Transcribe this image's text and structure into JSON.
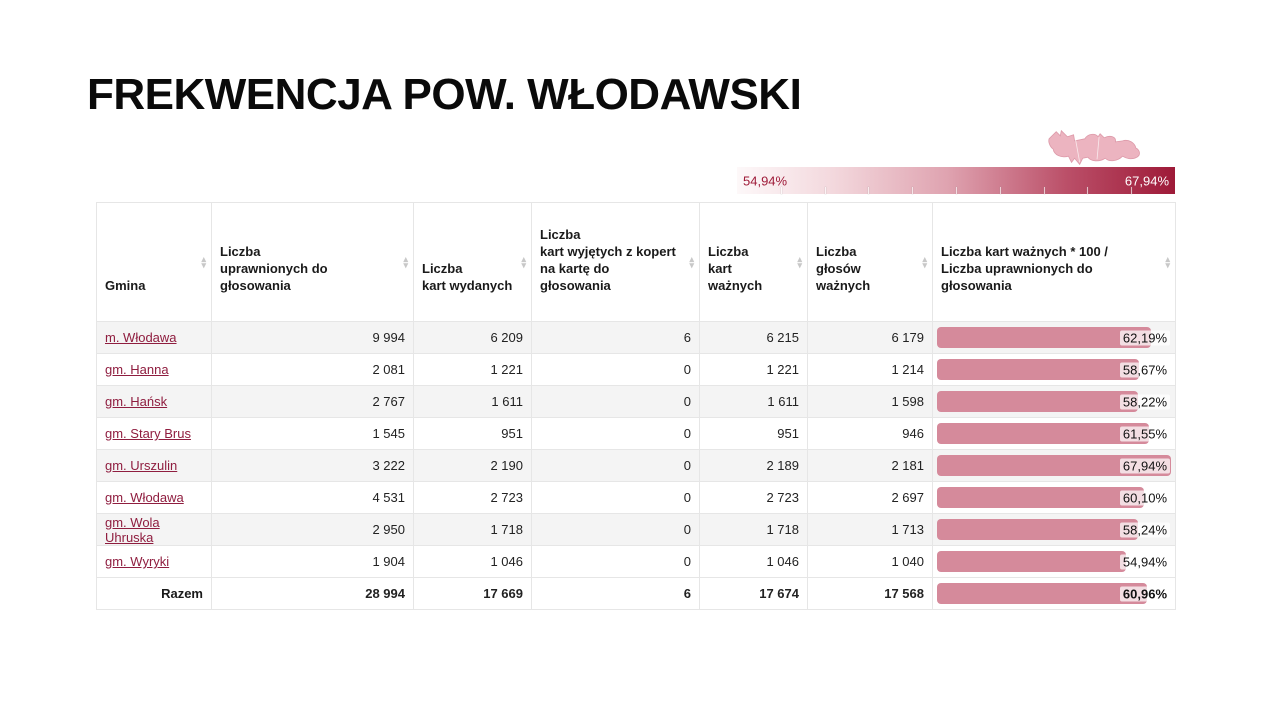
{
  "page_title": "FREKWENCJA POW. WŁODAWSKI",
  "icons": {
    "sort_asc_glyph": "▴",
    "sort_desc_glyph": "▾"
  },
  "legend": {
    "min_label": "54,94%",
    "max_label": "67,94%",
    "min_value": 54.94,
    "max_value": 67.94,
    "gradient_start_color": "#fdf8f9",
    "gradient_end_color": "#9e1a38",
    "map_icon": "county-silhouette-map",
    "map_fill_color": "#ecb4c0"
  },
  "table": {
    "headers": [
      {
        "label": "Gmina",
        "sortable": true
      },
      {
        "label": "Liczba\nuprawnionych do głosowania",
        "sortable": true
      },
      {
        "label": "Liczba\nkart wydanych",
        "sortable": true
      },
      {
        "label": "Liczba\nkart wyjętych z kopert\nna kartę do głosowania",
        "sortable": true
      },
      {
        "label": "Liczba\nkart ważnych",
        "sortable": true
      },
      {
        "label": "Liczba\ngłosów ważnych",
        "sortable": true
      },
      {
        "label": "Liczba kart ważnych * 100 /\nLiczba uprawnionych do głosowania",
        "sortable": true
      }
    ],
    "rows": [
      {
        "gmina": "m. Włodawa",
        "values": [
          "9 994",
          "6 209",
          "6",
          "6 215",
          "6 179"
        ],
        "pct_label": "62,19%",
        "pct_value": 62.19
      },
      {
        "gmina": "gm. Hanna",
        "values": [
          "2 081",
          "1 221",
          "0",
          "1 221",
          "1 214"
        ],
        "pct_label": "58,67%",
        "pct_value": 58.67
      },
      {
        "gmina": "gm. Hańsk",
        "values": [
          "2 767",
          "1 611",
          "0",
          "1 611",
          "1 598"
        ],
        "pct_label": "58,22%",
        "pct_value": 58.22
      },
      {
        "gmina": "gm. Stary Brus",
        "values": [
          "1 545",
          "951",
          "0",
          "951",
          "946"
        ],
        "pct_label": "61,55%",
        "pct_value": 61.55
      },
      {
        "gmina": "gm. Urszulin",
        "values": [
          "3 222",
          "2 190",
          "0",
          "2 189",
          "2 181"
        ],
        "pct_label": "67,94%",
        "pct_value": 67.94
      },
      {
        "gmina": "gm. Włodawa",
        "values": [
          "4 531",
          "2 723",
          "0",
          "2 723",
          "2 697"
        ],
        "pct_label": "60,10%",
        "pct_value": 60.1
      },
      {
        "gmina": "gm. Wola Uhruska",
        "values": [
          "2 950",
          "1 718",
          "0",
          "1 718",
          "1 713"
        ],
        "pct_label": "58,24%",
        "pct_value": 58.24
      },
      {
        "gmina": "gm. Wyryki",
        "values": [
          "1 904",
          "1 046",
          "0",
          "1 046",
          "1 040"
        ],
        "pct_label": "54,94%",
        "pct_value": 54.94
      }
    ],
    "footer": {
      "label": "Razem",
      "values": [
        "28 994",
        "17 669",
        "6",
        "17 674",
        "17 568"
      ],
      "pct_label": "60,96%",
      "pct_value": 60.96
    }
  },
  "colors": {
    "link": "#8f1d3f",
    "bar": "#d58a9b",
    "row_alt": "#f4f4f4",
    "legend_dark": "#9e1a38"
  }
}
